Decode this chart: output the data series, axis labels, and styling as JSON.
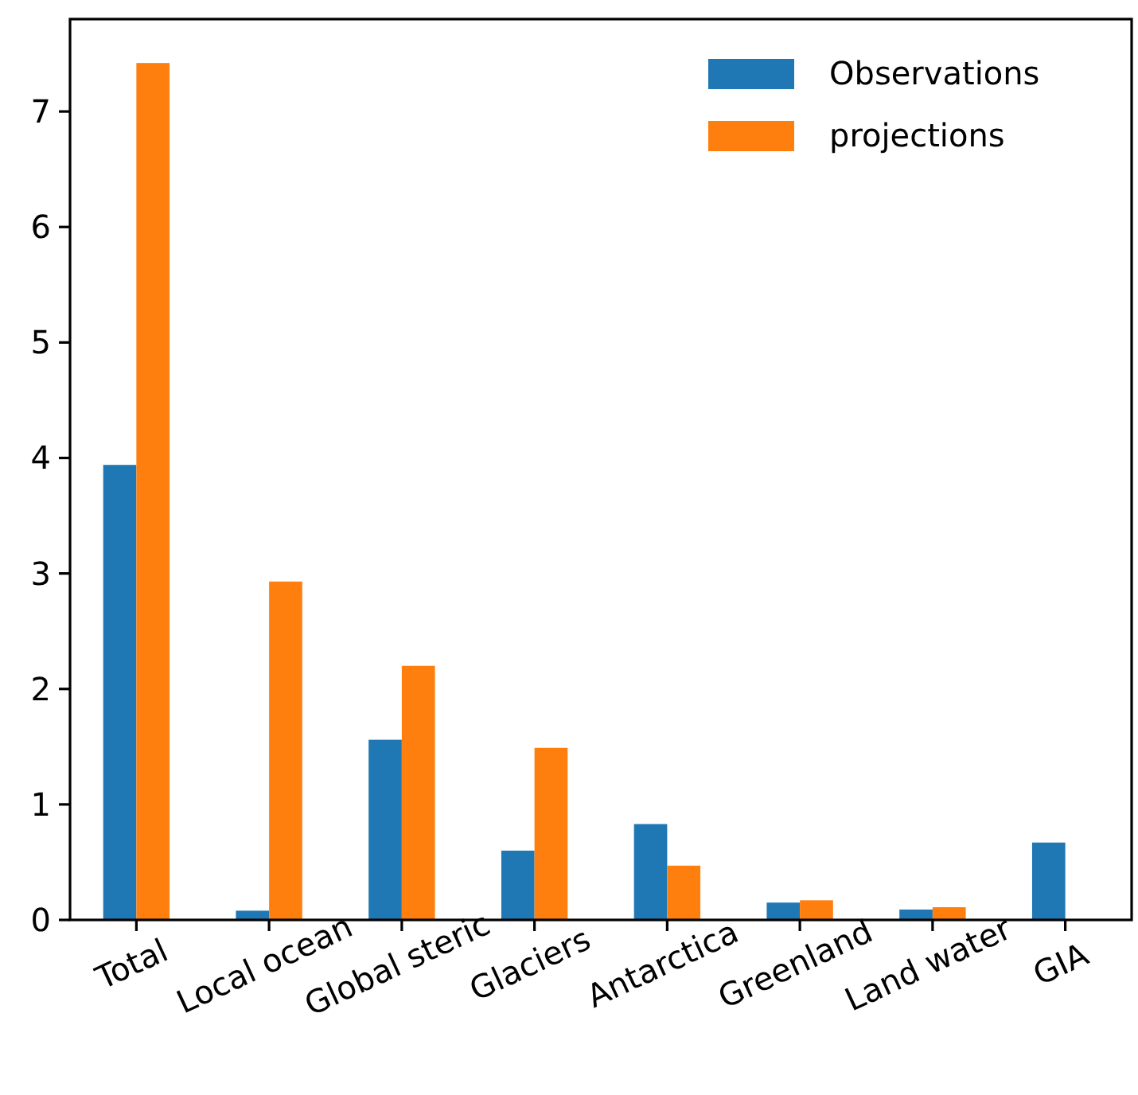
{
  "chart_data": {
    "type": "bar",
    "categories": [
      "Total",
      "Local ocean",
      "Global steric",
      "Glaciers",
      "Antarctica",
      "Greenland",
      "Land water",
      "GIA"
    ],
    "series": [
      {
        "name": "Observations",
        "color": "#1f77b4",
        "values": [
          3.94,
          0.08,
          1.56,
          0.6,
          0.83,
          0.15,
          0.09,
          0.67
        ]
      },
      {
        "name": "projections",
        "color": "#ff7f0e",
        "values": [
          7.42,
          2.93,
          2.2,
          1.49,
          0.47,
          0.17,
          0.11,
          null
        ]
      }
    ],
    "ylim": [
      0,
      7.8
    ],
    "yticks": [
      0,
      1,
      2,
      3,
      4,
      5,
      6,
      7
    ],
    "grid": false,
    "legend": "top right"
  }
}
